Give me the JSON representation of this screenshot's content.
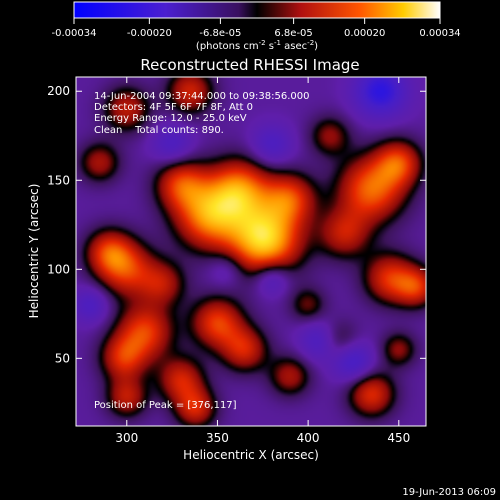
{
  "chart_data": {
    "type": "heatmap",
    "title": "Reconstructed RHESSI Image",
    "xlabel": "Heliocentric X (arcsec)",
    "ylabel": "Heliocentric Y (arcsec)",
    "xlim": [
      272,
      465
    ],
    "ylim": [
      12,
      208
    ],
    "x_ticks": [
      300,
      350,
      400,
      450
    ],
    "y_ticks": [
      50,
      100,
      150,
      200
    ],
    "colorbar": {
      "range": [
        -0.00034,
        0.00034
      ],
      "ticks": [
        "-0.00034",
        "-0.00020",
        "-6.8e-05",
        "6.8e-05",
        "0.00020",
        "0.00034"
      ],
      "tick_values": [
        -0.00034,
        -0.0002,
        -6.8e-05,
        6.8e-05,
        0.0002,
        0.00034
      ],
      "unit_label_main": "(photons cm",
      "unit_sup1": "-2",
      "unit_mid": " s",
      "unit_sup2": "-1",
      "unit_mid2": " asec",
      "unit_sup3": "-2",
      "unit_end": ")"
    },
    "annotations": [
      "14-Jun-2004 09:37:44.000 to 09:38:56.000",
      "Detectors: 4F 5F 6F 7F 8F, Att 0",
      "Energy Range: 12.0 - 25.0 keV",
      "Clean    Total counts: 890."
    ],
    "peak_label": "Position of Peak = [376,117]",
    "peak": [
      376,
      117
    ],
    "sources": [
      {
        "x": 376,
        "y": 117,
        "amp": 1.0,
        "s": 14
      },
      {
        "x": 345,
        "y": 130,
        "amp": 0.75,
        "s": 13
      },
      {
        "x": 362,
        "y": 145,
        "amp": 0.7,
        "s": 12
      },
      {
        "x": 390,
        "y": 140,
        "amp": 0.55,
        "s": 10
      },
      {
        "x": 330,
        "y": 148,
        "amp": 0.55,
        "s": 10
      },
      {
        "x": 435,
        "y": 145,
        "amp": 0.7,
        "s": 13
      },
      {
        "x": 450,
        "y": 160,
        "amp": 0.55,
        "s": 9
      },
      {
        "x": 420,
        "y": 120,
        "amp": 0.45,
        "s": 10
      },
      {
        "x": 445,
        "y": 95,
        "amp": 0.55,
        "s": 10
      },
      {
        "x": 460,
        "y": 90,
        "amp": 0.5,
        "s": 8
      },
      {
        "x": 300,
        "y": 100,
        "amp": 0.55,
        "s": 11
      },
      {
        "x": 290,
        "y": 110,
        "amp": 0.5,
        "s": 9
      },
      {
        "x": 320,
        "y": 92,
        "amp": 0.4,
        "s": 9
      },
      {
        "x": 310,
        "y": 65,
        "amp": 0.6,
        "s": 11
      },
      {
        "x": 298,
        "y": 50,
        "amp": 0.5,
        "s": 9
      },
      {
        "x": 350,
        "y": 70,
        "amp": 0.6,
        "s": 10
      },
      {
        "x": 365,
        "y": 55,
        "amp": 0.5,
        "s": 9
      },
      {
        "x": 330,
        "y": 38,
        "amp": 0.5,
        "s": 9
      },
      {
        "x": 338,
        "y": 22,
        "amp": 0.5,
        "s": 8
      },
      {
        "x": 300,
        "y": 28,
        "amp": 0.45,
        "s": 8
      },
      {
        "x": 415,
        "y": 60,
        "amp": 0.4,
        "s": 8
      },
      {
        "x": 435,
        "y": 30,
        "amp": 0.55,
        "s": 9
      },
      {
        "x": 390,
        "y": 40,
        "amp": 0.4,
        "s": 8
      },
      {
        "x": 450,
        "y": 55,
        "amp": 0.35,
        "s": 7
      },
      {
        "x": 300,
        "y": 190,
        "amp": 0.45,
        "s": 9
      },
      {
        "x": 335,
        "y": 200,
        "amp": 0.5,
        "s": 9
      },
      {
        "x": 285,
        "y": 160,
        "amp": 0.4,
        "s": 8
      },
      {
        "x": 412,
        "y": 175,
        "amp": 0.35,
        "s": 8
      },
      {
        "x": 400,
        "y": 80,
        "amp": 0.3,
        "s": 7
      },
      {
        "x": 440,
        "y": 200,
        "amp": -0.55,
        "s": 10
      },
      {
        "x": 408,
        "y": 60,
        "amp": -0.45,
        "s": 8
      },
      {
        "x": 425,
        "y": 48,
        "amp": -0.4,
        "s": 8
      },
      {
        "x": 380,
        "y": 95,
        "amp": -0.35,
        "s": 7
      },
      {
        "x": 325,
        "y": 170,
        "amp": -0.3,
        "s": 8
      },
      {
        "x": 380,
        "y": 170,
        "amp": -0.3,
        "s": 8
      },
      {
        "x": 280,
        "y": 80,
        "amp": -0.3,
        "s": 7
      },
      {
        "x": 355,
        "y": 100,
        "amp": -0.2,
        "s": 7
      }
    ],
    "background": -0.22
  },
  "footer": {
    "timestamp": "19-Jun-2013 06:09"
  }
}
